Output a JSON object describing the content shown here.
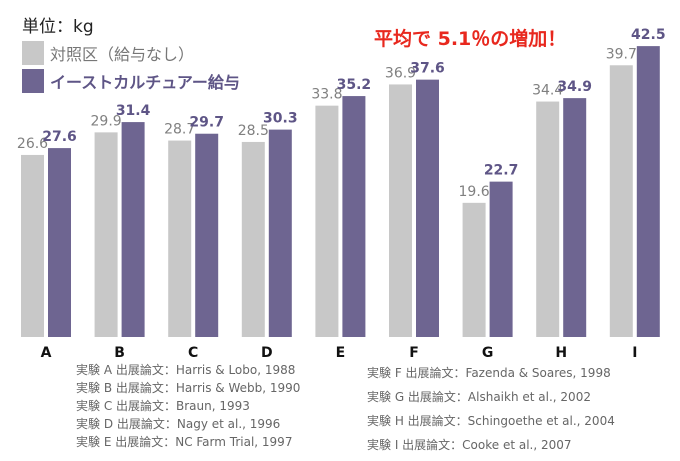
{
  "unit_label": "単位：kg",
  "headline": "平均で 5.1％の増加！",
  "legend": {
    "control": "対照区（給与なし）",
    "yeast": "イーストカルチュアー給与"
  },
  "colors": {
    "control": "#c8c8c8",
    "yeast": "#6e6591",
    "headline": "#e8281e"
  },
  "chart_data": {
    "type": "bar",
    "categories": [
      "A",
      "B",
      "C",
      "D",
      "E",
      "F",
      "G",
      "H",
      "I"
    ],
    "series": [
      {
        "name": "対照区（給与なし）",
        "values": [
          26.6,
          29.9,
          28.7,
          28.5,
          33.8,
          36.9,
          19.6,
          34.4,
          39.7
        ]
      },
      {
        "name": "イーストカルチュアー給与",
        "values": [
          27.6,
          31.4,
          29.7,
          30.3,
          35.2,
          37.6,
          22.7,
          34.9,
          42.5
        ]
      }
    ],
    "ylim": [
      0,
      45
    ],
    "title": "",
    "xlabel": "",
    "ylabel": ""
  },
  "sources_left": [
    "実験 A 出展論文：Harris & Lobo, 1988",
    "実験 B 出展論文：Harris & Webb, 1990",
    "実験 C 出展論文：Braun, 1993",
    "実験 D 出展論文：Nagy et al., 1996",
    "実験 E 出展論文：NC Farm Trial, 1997"
  ],
  "sources_right": [
    "実験 F 出展論文：Fazenda & Soares, 1998",
    "実験 G 出展論文：Alshaikh et al., 2002",
    "実験 H 出展論文：Schingoethe et al., 2004",
    "実験 I 出展論文：Cooke et al., 2007"
  ]
}
